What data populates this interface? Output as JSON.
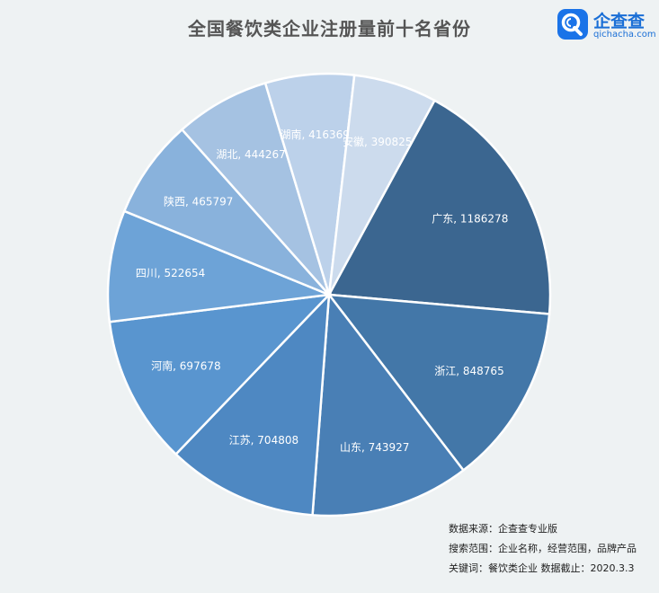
{
  "chart_data": {
    "type": "pie",
    "title": "全国餐饮类企业注册量前十名省份",
    "categories": [
      "广东",
      "浙江",
      "山东",
      "江苏",
      "河南",
      "四川",
      "陕西",
      "湖北",
      "湖南",
      "安徽"
    ],
    "values": [
      1186278,
      848765,
      743927,
      704808,
      697678,
      522654,
      465797,
      444267,
      416369,
      390825
    ],
    "labels": [
      "广东, 1186278",
      "浙江, 848765",
      "山东, 743927",
      "江苏, 704808",
      "河南, 697678",
      "四川, 522654",
      "陕西, 465797",
      "湖北, 444267",
      "湖南, 416369",
      "安徽, 390825"
    ],
    "colors": [
      "#3b6690",
      "#4377a8",
      "#497fb5",
      "#4e88c2",
      "#5995cf",
      "#6da3d7",
      "#89b2dc",
      "#a5c2e2",
      "#bcd1ea",
      "#ccdbed"
    ],
    "start_angle_deg": 28.5,
    "direction": "clockwise"
  },
  "logo": {
    "name": "企查查",
    "domain": "qichacha.com"
  },
  "notes": {
    "source": "数据来源：企查查专业版",
    "scope": "搜索范围：企业名称，经营范围，品牌产品",
    "keywords": "关键词：餐饮类企业  数据截止：2020.3.3"
  }
}
